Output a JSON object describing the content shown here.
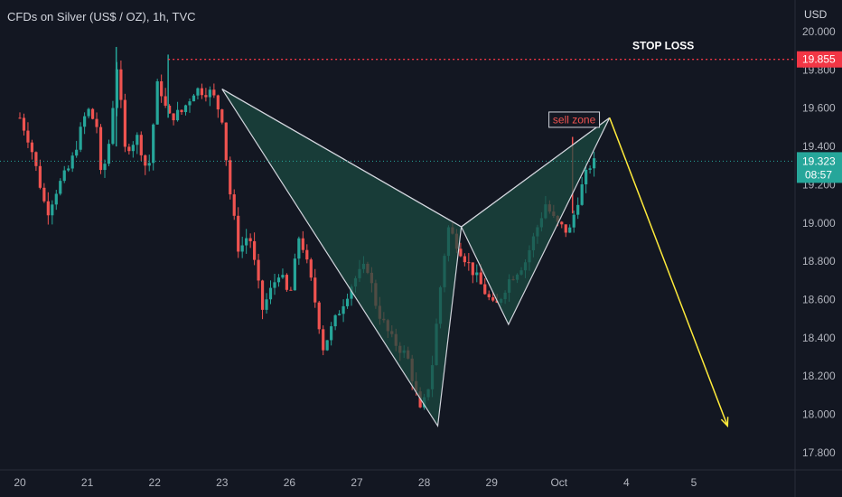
{
  "header": {
    "title": "CFDs on Silver (US$ / OZ), 1h, TVC",
    "currency": "USD"
  },
  "colors": {
    "background": "#131722",
    "up": "#26a69a",
    "down": "#ef5350",
    "pattern_fill": "#1b4a40",
    "pattern_stroke": "#d1d4dc",
    "projection": "#ffeb3b",
    "stop_line": "#f23645",
    "price_line": "#26a69a"
  },
  "chart_data": {
    "type": "line",
    "title": "CFDs on Silver (US$ / OZ), 1h, TVC",
    "ylabel": "USD",
    "ylim": [
      17.8,
      20.0
    ],
    "y_ticks": [
      "20.000",
      "19.800",
      "19.600",
      "19.400",
      "19.200",
      "19.000",
      "18.800",
      "18.600",
      "18.400",
      "18.200",
      "18.000",
      "17.800"
    ],
    "x_ticks": [
      {
        "label": "20",
        "day": 0
      },
      {
        "label": "21",
        "day": 1
      },
      {
        "label": "22",
        "day": 2
      },
      {
        "label": "23",
        "day": 3
      },
      {
        "label": "26",
        "day": 4
      },
      {
        "label": "27",
        "day": 5
      },
      {
        "label": "28",
        "day": 6
      },
      {
        "label": "29",
        "day": 7
      },
      {
        "label": "Oct",
        "day": 8
      },
      {
        "label": "4",
        "day": 9
      },
      {
        "label": "5",
        "day": 10
      }
    ],
    "series": [
      {
        "type": "candlestick-path",
        "points": [
          [
            0.0,
            19.55
          ],
          [
            0.15,
            19.42
          ],
          [
            0.3,
            19.2
          ],
          [
            0.4,
            19.05
          ],
          [
            0.55,
            19.18
          ],
          [
            0.75,
            19.3
          ],
          [
            1.0,
            19.6
          ],
          [
            1.15,
            19.5
          ],
          [
            1.2,
            19.25
          ],
          [
            1.3,
            19.35
          ],
          [
            1.45,
            19.85
          ],
          [
            1.55,
            19.38
          ],
          [
            1.75,
            19.45
          ],
          [
            1.9,
            19.25
          ],
          [
            2.05,
            19.75
          ],
          [
            2.2,
            19.55
          ],
          [
            2.4,
            19.58
          ],
          [
            2.6,
            19.7
          ],
          [
            2.85,
            19.68
          ],
          [
            3.0,
            19.55
          ],
          [
            3.1,
            19.2
          ],
          [
            3.25,
            18.85
          ],
          [
            3.4,
            18.95
          ],
          [
            3.6,
            18.55
          ],
          [
            3.85,
            18.75
          ],
          [
            4.0,
            18.6
          ],
          [
            4.15,
            18.95
          ],
          [
            4.35,
            18.65
          ],
          [
            4.5,
            18.35
          ],
          [
            4.75,
            18.55
          ],
          [
            4.95,
            18.7
          ],
          [
            5.15,
            18.78
          ],
          [
            5.3,
            18.55
          ],
          [
            5.5,
            18.4
          ],
          [
            5.75,
            18.3
          ],
          [
            5.95,
            18.0
          ],
          [
            6.1,
            18.2
          ],
          [
            6.25,
            18.7
          ],
          [
            6.35,
            18.98
          ],
          [
            6.55,
            18.85
          ],
          [
            6.8,
            18.7
          ],
          [
            7.05,
            18.55
          ],
          [
            7.25,
            18.7
          ],
          [
            7.5,
            18.8
          ],
          [
            7.65,
            18.95
          ],
          [
            7.8,
            19.1
          ],
          [
            7.95,
            19.0
          ],
          [
            8.15,
            18.95
          ],
          [
            8.3,
            19.15
          ],
          [
            8.45,
            19.3
          ],
          [
            8.55,
            19.32
          ]
        ]
      }
    ],
    "pattern": {
      "name": "bearish harmonic pattern",
      "points": [
        {
          "day": 3.0,
          "value": 19.7
        },
        {
          "day": 6.2,
          "value": 17.94
        },
        {
          "day": 6.55,
          "value": 18.98
        },
        {
          "day": 7.25,
          "value": 18.47
        },
        {
          "day": 8.75,
          "value": 19.55
        }
      ]
    },
    "projection": {
      "from_day": 8.75,
      "from_value": 19.55,
      "to_day": 10.5,
      "to_value": 17.94
    },
    "stop_loss": {
      "label": "STOP LOSS",
      "value": 19.855,
      "value_label": "19.855"
    },
    "current_price": {
      "value": 19.323,
      "value_label": "19.323",
      "countdown": "08:57"
    },
    "sell_zone": {
      "label": "sell zone",
      "day_from": 7.85,
      "day_to": 8.6,
      "value_from": 19.5,
      "value_to": 19.58
    }
  }
}
